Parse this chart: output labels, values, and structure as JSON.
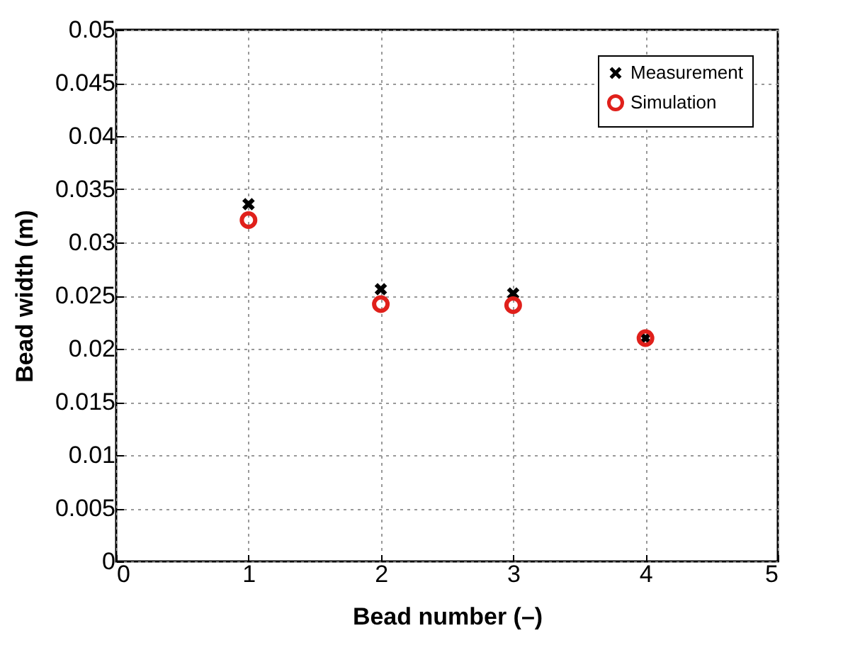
{
  "chart_data": {
    "type": "scatter",
    "xlabel": "Bead number (–)",
    "ylabel": "Bead width (m)",
    "x": [
      1,
      2,
      3,
      4
    ],
    "series": [
      {
        "name": "Measurement",
        "color": "#000000",
        "marker": "cross",
        "values": [
          0.0336,
          0.0256,
          0.0252,
          0.021
        ]
      },
      {
        "name": "Simulation",
        "color": "#e0201b",
        "marker": "circle",
        "values": [
          0.0321,
          0.0242,
          0.0241,
          0.021
        ]
      }
    ],
    "xlim": [
      0,
      5
    ],
    "xticks": [
      0,
      1,
      2,
      3,
      4,
      5
    ],
    "ylim": [
      0,
      0.05
    ],
    "yticks": [
      0,
      0.005,
      0.01,
      0.015,
      0.02,
      0.025,
      0.03,
      0.035,
      0.04,
      0.045,
      0.05
    ],
    "grid": true,
    "legend": "top right"
  }
}
